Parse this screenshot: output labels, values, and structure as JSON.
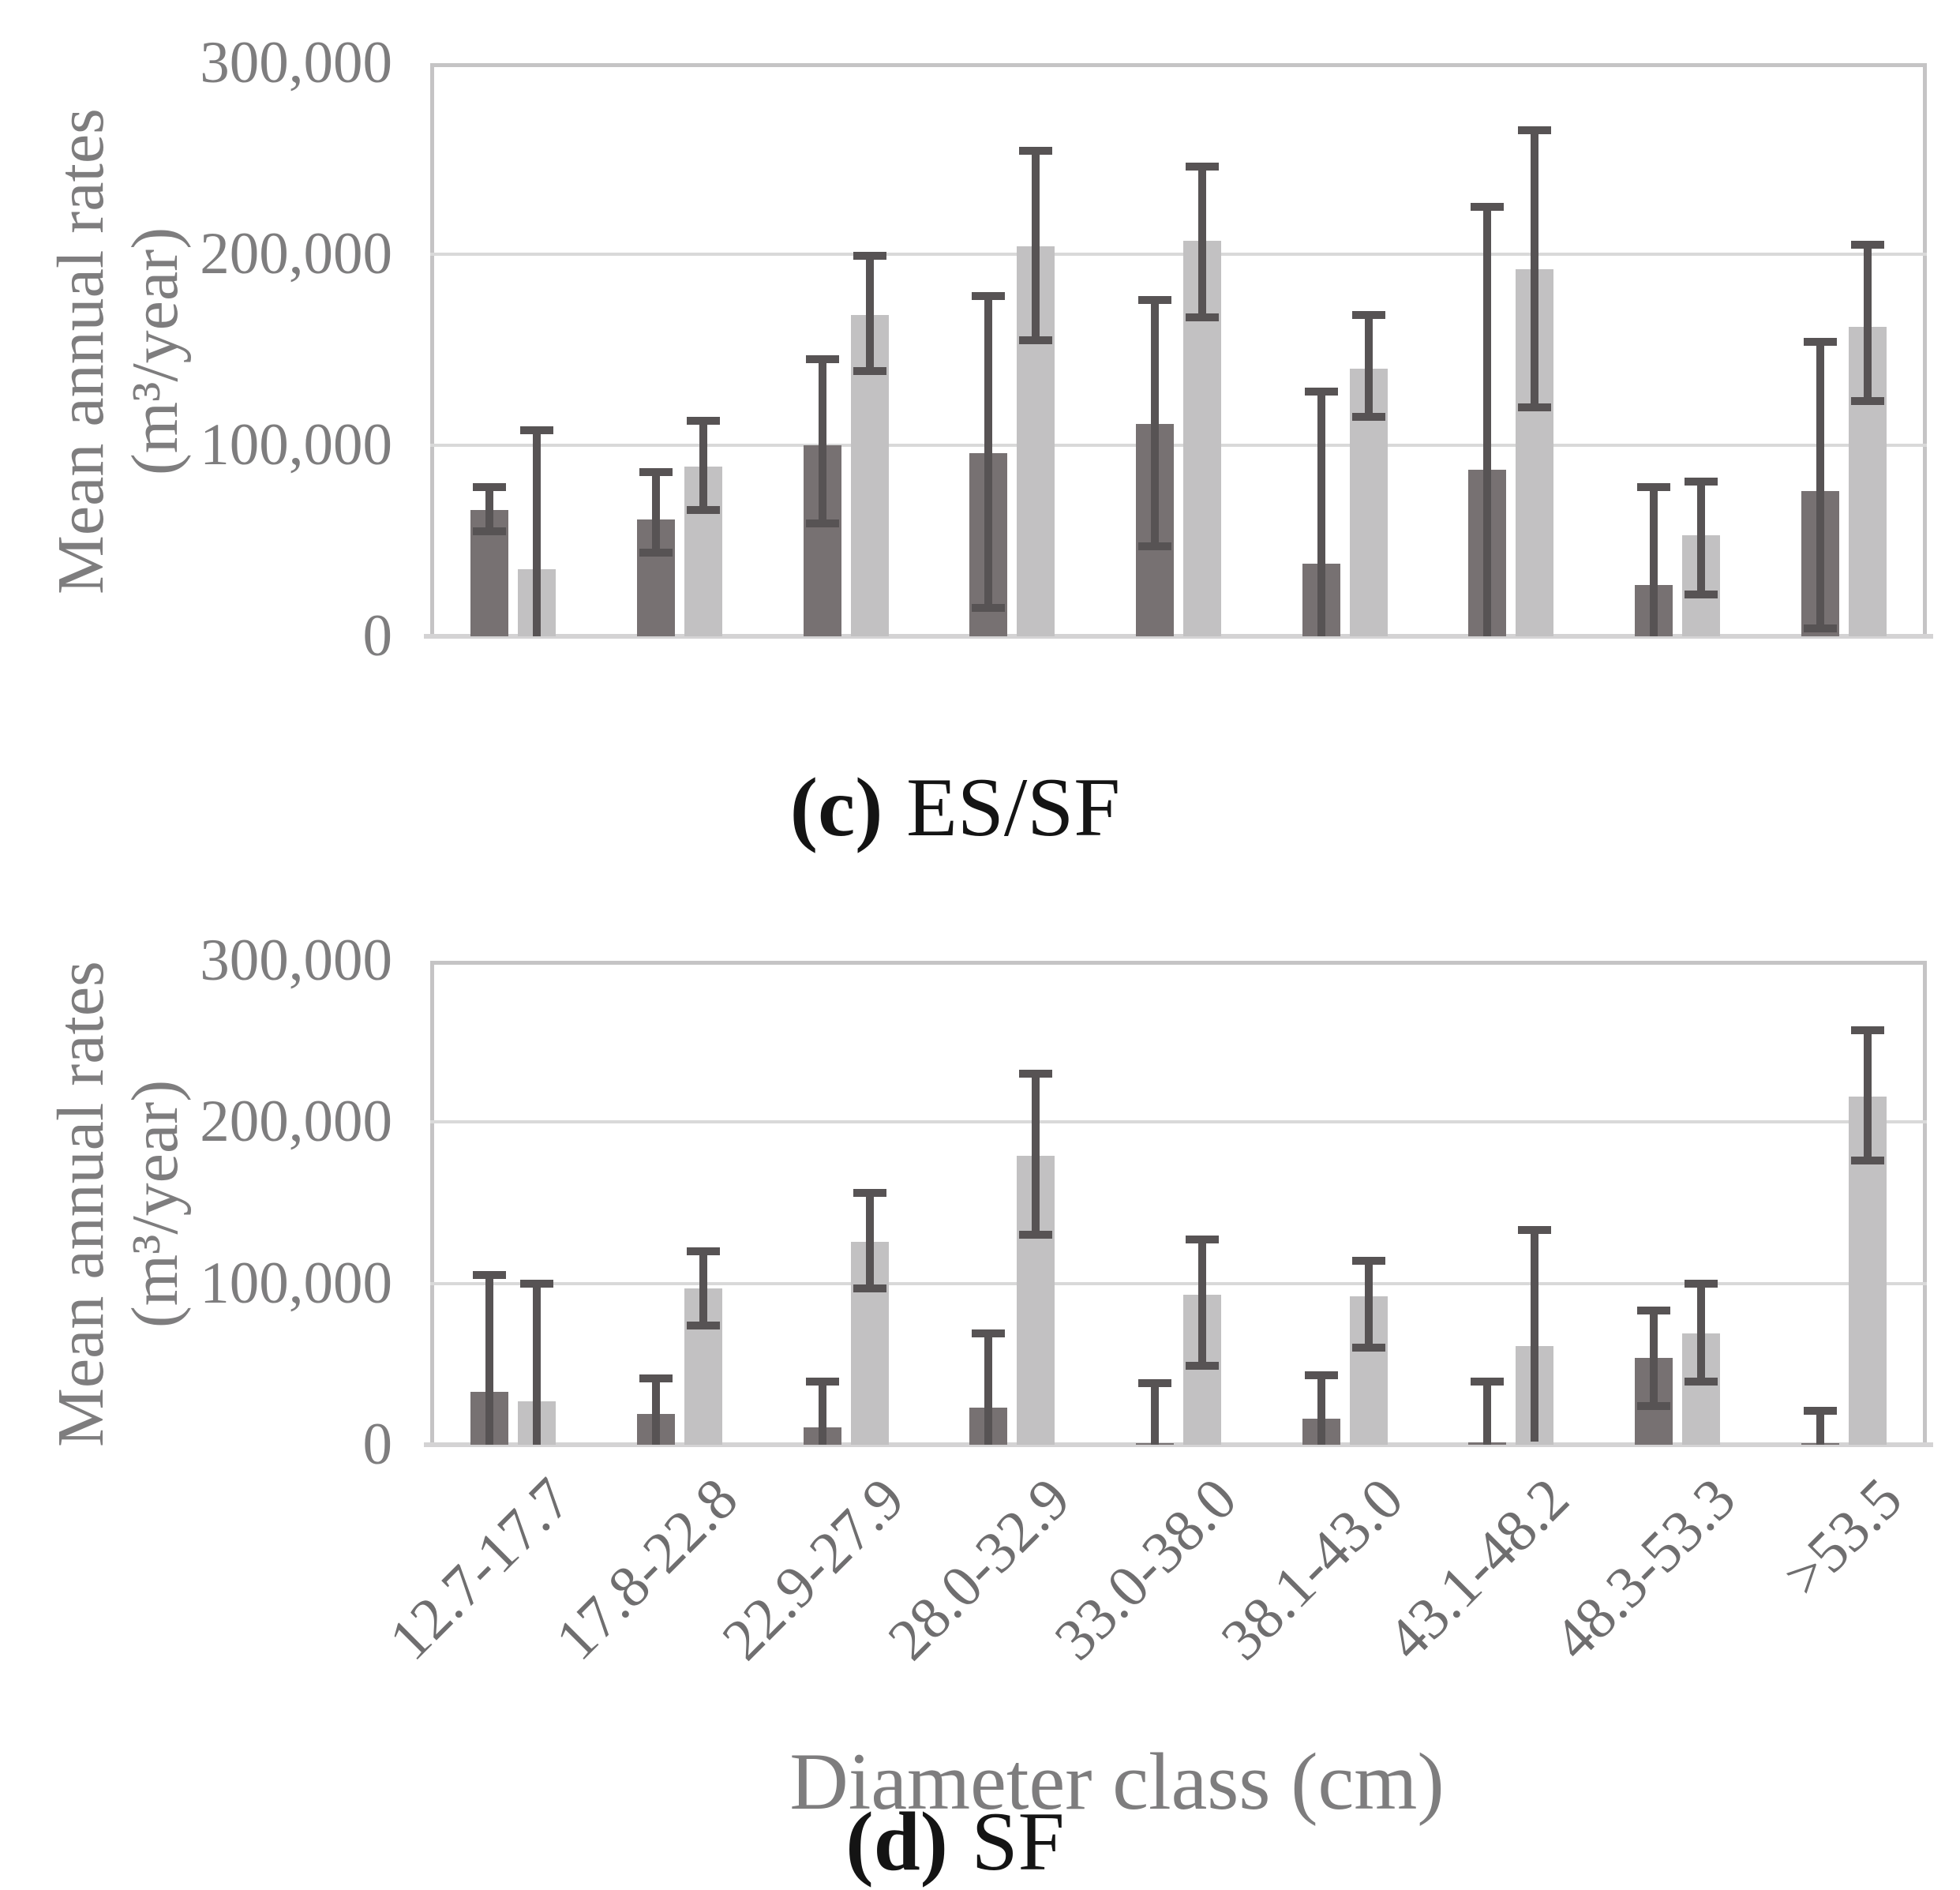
{
  "y_axis": {
    "title_line1": "Mean annual rates",
    "title_line2": "(m³/year)"
  },
  "x_axis": {
    "title": "Diameter class (cm)"
  },
  "chart_data": [
    {
      "type": "bar",
      "title": "(c) ES/SF",
      "caption_bold": "(c)",
      "caption_rest": "ES/SF",
      "categories": [
        "12.7-17.7",
        "17.8-22.8",
        "22.9-27.9",
        "28.0-32.9",
        "33.0-38.0",
        "38.1-43.0",
        "43.1-48.2",
        "48.3-53.3",
        ">53.5"
      ],
      "xlabel": "Diameter class (cm)",
      "ylabel": "Mean annual rates (m³/year)",
      "ylim": [
        0,
        300000
      ],
      "ytick_values": [
        0,
        100000,
        200000,
        300000
      ],
      "ytick_labels": [
        "0",
        "100,000",
        "200,000",
        "300,000"
      ],
      "grid": true,
      "legend": "none",
      "series": [
        {
          "name": "series-dark",
          "color": "#777172",
          "values": [
            66000,
            61000,
            100000,
            96000,
            111000,
            38000,
            87000,
            27000,
            76000
          ],
          "err_hi": [
            78000,
            86000,
            145000,
            178000,
            176000,
            128000,
            225000,
            78000,
            154000
          ],
          "err_lo": [
            55000,
            44000,
            59000,
            15000,
            47000,
            0,
            0,
            0,
            4000
          ]
        },
        {
          "name": "series-light",
          "color": "#c2c1c2",
          "values": [
            35000,
            89000,
            168000,
            204000,
            207000,
            140000,
            192000,
            53000,
            162000
          ],
          "err_hi": [
            108000,
            113000,
            199000,
            254000,
            246000,
            168000,
            265000,
            81000,
            205000
          ],
          "err_lo": [
            0,
            66000,
            139000,
            155000,
            167000,
            115000,
            120000,
            22000,
            123000
          ]
        }
      ]
    },
    {
      "type": "bar",
      "title": "(d) SF",
      "caption_bold": "(d)",
      "caption_rest": "SF",
      "categories": [
        "12.7-17.7",
        "17.8-22.8",
        "22.9-27.9",
        "28.0-32.9",
        "33.0-38.0",
        "38.1-43.0",
        "43.1-48.2",
        "48.3-53.3",
        ">53.5"
      ],
      "xlabel": "Diameter class (cm)",
      "ylabel": "Mean annual rates (m³/year)",
      "ylim": [
        0,
        300000
      ],
      "ytick_values": [
        0,
        100000,
        200000,
        300000
      ],
      "ytick_labels": [
        "0",
        "100,000",
        "200,000",
        "300,000"
      ],
      "grid": true,
      "legend": "none",
      "series": [
        {
          "name": "series-dark",
          "color": "#777172",
          "values": [
            33000,
            19000,
            11000,
            23000,
            1200,
            16000,
            1500,
            54000,
            1000
          ],
          "err_hi": [
            105000,
            41000,
            39000,
            69000,
            38000,
            43000,
            39000,
            83000,
            21000
          ],
          "err_lo": [
            0,
            0,
            0,
            0,
            0,
            0,
            0,
            24000,
            0
          ]
        },
        {
          "name": "series-light",
          "color": "#c2c1c2",
          "values": [
            27000,
            97000,
            126000,
            179000,
            93000,
            92000,
            61000,
            69000,
            216000
          ],
          "err_hi": [
            100000,
            120000,
            156000,
            230000,
            127000,
            114000,
            133000,
            100000,
            257000
          ],
          "err_lo": [
            0,
            74000,
            97000,
            130000,
            49000,
            60000,
            2000,
            39000,
            176000
          ]
        }
      ]
    }
  ]
}
